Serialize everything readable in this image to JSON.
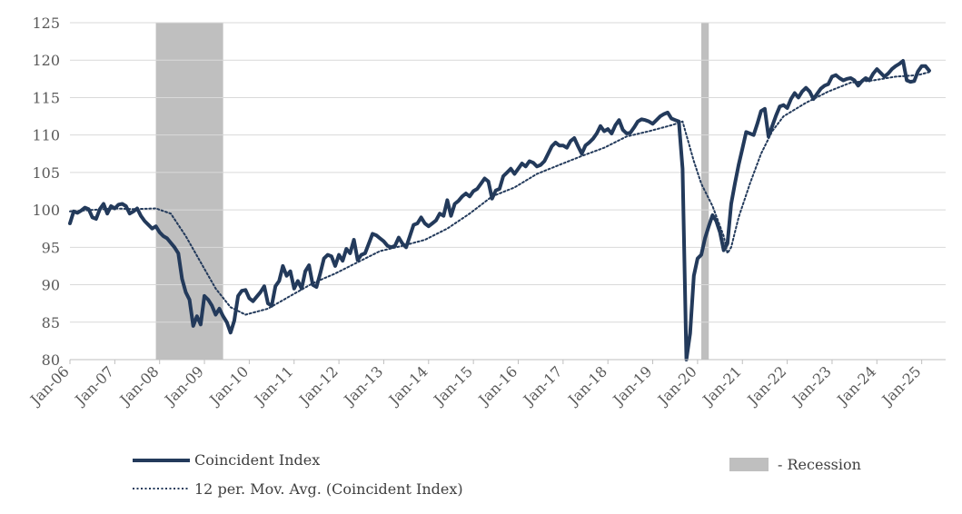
{
  "chart_data": {
    "type": "line",
    "title": "",
    "xlabel": "",
    "ylabel": "",
    "ylim": [
      80,
      125
    ],
    "y_ticks": [
      "80",
      "85",
      "90",
      "95",
      "100",
      "105",
      "110",
      "115",
      "120",
      "125"
    ],
    "x_ticks": [
      "Jan-06",
      "Jan-07",
      "Jan-08",
      "Jan-09",
      "Jan-10",
      "Jan-11",
      "Jan-12",
      "Jan-13",
      "Jan-14",
      "Jan-15",
      "Jan-16",
      "Jan-17",
      "Jan-18",
      "Jan-19",
      "Jan-20",
      "Jan-21",
      "Jan-22",
      "Jan-23",
      "Jan-24",
      "Jan-25"
    ],
    "x_range": [
      "2006-01",
      "2025-08"
    ],
    "grid": "horizontal",
    "legend_position": "bottom",
    "colors": {
      "index": "#233a5b",
      "moving_average": "#233a5b",
      "recession": "#bfbfbf",
      "grid": "#d9d9d9",
      "axis_text": "#595959"
    },
    "recessions": [
      {
        "start": "2007-12",
        "end": "2009-06"
      },
      {
        "start": "2020-02",
        "end": "2020-04"
      }
    ],
    "series": [
      {
        "name": "Coincident Index",
        "style": "solid",
        "points": [
          [
            "2006-01",
            98.2
          ],
          [
            "2006-02",
            99.8
          ],
          [
            "2006-03",
            99.6
          ],
          [
            "2006-04",
            99.9
          ],
          [
            "2006-05",
            100.3
          ],
          [
            "2006-06",
            100.1
          ],
          [
            "2006-07",
            99.0
          ],
          [
            "2006-08",
            98.8
          ],
          [
            "2006-09",
            100.1
          ],
          [
            "2006-10",
            100.8
          ],
          [
            "2006-11",
            99.5
          ],
          [
            "2006-12",
            100.5
          ],
          [
            "2007-01",
            100.2
          ],
          [
            "2007-02",
            100.7
          ],
          [
            "2007-03",
            100.8
          ],
          [
            "2007-04",
            100.5
          ],
          [
            "2007-05",
            99.5
          ],
          [
            "2007-06",
            99.8
          ],
          [
            "2007-07",
            100.2
          ],
          [
            "2007-08",
            99.2
          ],
          [
            "2007-09",
            98.5
          ],
          [
            "2007-10",
            98.0
          ],
          [
            "2007-11",
            97.5
          ],
          [
            "2007-12",
            97.8
          ],
          [
            "2008-01",
            97.0
          ],
          [
            "2008-02",
            96.5
          ],
          [
            "2008-03",
            96.2
          ],
          [
            "2008-04",
            95.6
          ],
          [
            "2008-05",
            95.0
          ],
          [
            "2008-06",
            94.2
          ],
          [
            "2008-07",
            90.8
          ],
          [
            "2008-08",
            89.0
          ],
          [
            "2008-09",
            88.0
          ],
          [
            "2008-10",
            84.5
          ],
          [
            "2008-11",
            85.8
          ],
          [
            "2008-12",
            84.7
          ],
          [
            "2009-01",
            88.5
          ],
          [
            "2009-02",
            88.0
          ],
          [
            "2009-03",
            87.2
          ],
          [
            "2009-04",
            86.0
          ],
          [
            "2009-05",
            86.8
          ],
          [
            "2009-06",
            85.8
          ],
          [
            "2009-07",
            85.0
          ],
          [
            "2009-08",
            83.6
          ],
          [
            "2009-09",
            85.2
          ],
          [
            "2009-10",
            88.5
          ],
          [
            "2009-11",
            89.2
          ],
          [
            "2009-12",
            89.3
          ],
          [
            "2010-01",
            88.2
          ],
          [
            "2010-02",
            87.8
          ],
          [
            "2010-03",
            88.4
          ],
          [
            "2010-04",
            89.0
          ],
          [
            "2010-05",
            89.8
          ],
          [
            "2010-06",
            87.5
          ],
          [
            "2010-07",
            87.2
          ],
          [
            "2010-08",
            89.8
          ],
          [
            "2010-09",
            90.5
          ],
          [
            "2010-10",
            92.5
          ],
          [
            "2010-11",
            91.2
          ],
          [
            "2010-12",
            91.8
          ],
          [
            "2011-01",
            89.5
          ],
          [
            "2011-02",
            90.5
          ],
          [
            "2011-03",
            89.5
          ],
          [
            "2011-04",
            91.8
          ],
          [
            "2011-05",
            92.6
          ],
          [
            "2011-06",
            90.0
          ],
          [
            "2011-07",
            89.7
          ],
          [
            "2011-08",
            91.5
          ],
          [
            "2011-09",
            93.5
          ],
          [
            "2011-10",
            94.0
          ],
          [
            "2011-11",
            93.8
          ],
          [
            "2011-12",
            92.5
          ],
          [
            "2012-01",
            94.0
          ],
          [
            "2012-02",
            93.2
          ],
          [
            "2012-03",
            94.8
          ],
          [
            "2012-04",
            94.2
          ],
          [
            "2012-05",
            96.0
          ],
          [
            "2012-06",
            93.3
          ],
          [
            "2012-07",
            94.0
          ],
          [
            "2012-08",
            94.2
          ],
          [
            "2012-09",
            95.5
          ],
          [
            "2012-10",
            96.8
          ],
          [
            "2012-11",
            96.6
          ],
          [
            "2012-12",
            96.2
          ],
          [
            "2013-01",
            95.8
          ],
          [
            "2013-02",
            95.2
          ],
          [
            "2013-03",
            95.0
          ],
          [
            "2013-04",
            95.2
          ],
          [
            "2013-05",
            96.3
          ],
          [
            "2013-06",
            95.5
          ],
          [
            "2013-07",
            95.0
          ],
          [
            "2013-08",
            96.5
          ],
          [
            "2013-09",
            98.0
          ],
          [
            "2013-10",
            98.2
          ],
          [
            "2013-11",
            99.0
          ],
          [
            "2013-12",
            98.2
          ],
          [
            "2014-01",
            97.8
          ],
          [
            "2014-02",
            98.2
          ],
          [
            "2014-03",
            98.6
          ],
          [
            "2014-04",
            99.5
          ],
          [
            "2014-05",
            99.2
          ],
          [
            "2014-06",
            101.3
          ],
          [
            "2014-07",
            99.2
          ],
          [
            "2014-08",
            100.8
          ],
          [
            "2014-09",
            101.2
          ],
          [
            "2014-10",
            101.8
          ],
          [
            "2014-11",
            102.2
          ],
          [
            "2014-12",
            101.8
          ],
          [
            "2015-01",
            102.5
          ],
          [
            "2015-02",
            102.8
          ],
          [
            "2015-03",
            103.5
          ],
          [
            "2015-04",
            104.2
          ],
          [
            "2015-05",
            103.8
          ],
          [
            "2015-06",
            101.5
          ],
          [
            "2015-07",
            102.6
          ],
          [
            "2015-08",
            102.8
          ],
          [
            "2015-09",
            104.5
          ],
          [
            "2015-10",
            105.0
          ],
          [
            "2015-11",
            105.5
          ],
          [
            "2015-12",
            104.8
          ],
          [
            "2016-01",
            105.5
          ],
          [
            "2016-02",
            106.2
          ],
          [
            "2016-03",
            105.8
          ],
          [
            "2016-04",
            106.5
          ],
          [
            "2016-05",
            106.3
          ],
          [
            "2016-06",
            105.8
          ],
          [
            "2016-07",
            106.0
          ],
          [
            "2016-08",
            106.5
          ],
          [
            "2016-09",
            107.5
          ],
          [
            "2016-10",
            108.5
          ],
          [
            "2016-11",
            109.0
          ],
          [
            "2016-12",
            108.6
          ],
          [
            "2017-01",
            108.6
          ],
          [
            "2017-02",
            108.3
          ],
          [
            "2017-03",
            109.2
          ],
          [
            "2017-04",
            109.6
          ],
          [
            "2017-05",
            108.5
          ],
          [
            "2017-06",
            107.5
          ],
          [
            "2017-07",
            108.6
          ],
          [
            "2017-08",
            109.0
          ],
          [
            "2017-09",
            109.5
          ],
          [
            "2017-10",
            110.2
          ],
          [
            "2017-11",
            111.2
          ],
          [
            "2017-12",
            110.5
          ],
          [
            "2018-01",
            110.8
          ],
          [
            "2018-02",
            110.2
          ],
          [
            "2018-03",
            111.3
          ],
          [
            "2018-04",
            112.0
          ],
          [
            "2018-05",
            110.7
          ],
          [
            "2018-06",
            110.2
          ],
          [
            "2018-07",
            110.3
          ],
          [
            "2018-08",
            111.0
          ],
          [
            "2018-09",
            111.8
          ],
          [
            "2018-10",
            112.1
          ],
          [
            "2018-11",
            112.0
          ],
          [
            "2018-12",
            111.8
          ],
          [
            "2019-01",
            111.5
          ],
          [
            "2019-02",
            112.0
          ],
          [
            "2019-03",
            112.5
          ],
          [
            "2019-04",
            112.8
          ],
          [
            "2019-05",
            113.0
          ],
          [
            "2019-06",
            112.2
          ],
          [
            "2019-07",
            112.0
          ],
          [
            "2019-08",
            111.8
          ],
          [
            "2019-09",
            105.5
          ],
          [
            "2019-10",
            80.0
          ],
          [
            "2019-11",
            83.5
          ],
          [
            "2019-12",
            91.2
          ],
          [
            "2020-01",
            93.5
          ],
          [
            "2020-02",
            94.0
          ],
          [
            "2020-03",
            96.2
          ],
          [
            "2020-04",
            97.8
          ],
          [
            "2020-05",
            99.3
          ],
          [
            "2020-06",
            98.5
          ],
          [
            "2020-07",
            97.0
          ],
          [
            "2020-08",
            94.6
          ],
          [
            "2020-09",
            95.5
          ],
          [
            "2020-10",
            100.8
          ],
          [
            "2020-11",
            103.5
          ],
          [
            "2020-12",
            106.0
          ],
          [
            "2021-01",
            108.2
          ],
          [
            "2021-02",
            110.4
          ],
          [
            "2021-03",
            110.2
          ],
          [
            "2021-04",
            110.0
          ],
          [
            "2021-05",
            111.5
          ],
          [
            "2021-06",
            113.2
          ],
          [
            "2021-07",
            113.5
          ],
          [
            "2021-08",
            109.8
          ],
          [
            "2021-09",
            111.2
          ],
          [
            "2021-10",
            112.6
          ],
          [
            "2021-11",
            113.8
          ],
          [
            "2021-12",
            114.0
          ],
          [
            "2022-01",
            113.6
          ],
          [
            "2022-02",
            114.8
          ],
          [
            "2022-03",
            115.6
          ],
          [
            "2022-04",
            115.0
          ],
          [
            "2022-05",
            115.8
          ],
          [
            "2022-06",
            116.3
          ],
          [
            "2022-07",
            115.8
          ],
          [
            "2022-08",
            114.8
          ],
          [
            "2022-09",
            115.5
          ],
          [
            "2022-10",
            116.2
          ],
          [
            "2022-11",
            116.6
          ],
          [
            "2022-12",
            116.8
          ],
          [
            "2023-01",
            117.8
          ],
          [
            "2023-02",
            118.0
          ],
          [
            "2023-03",
            117.6
          ],
          [
            "2023-04",
            117.3
          ],
          [
            "2023-05",
            117.5
          ],
          [
            "2023-06",
            117.6
          ],
          [
            "2023-07",
            117.3
          ],
          [
            "2023-08",
            116.6
          ],
          [
            "2023-09",
            117.2
          ],
          [
            "2023-10",
            117.6
          ],
          [
            "2023-11",
            117.3
          ],
          [
            "2023-12",
            118.2
          ],
          [
            "2024-01",
            118.8
          ],
          [
            "2024-02",
            118.3
          ],
          [
            "2024-03",
            117.8
          ],
          [
            "2024-04",
            118.2
          ],
          [
            "2024-05",
            118.8
          ],
          [
            "2024-06",
            119.2
          ],
          [
            "2024-07",
            119.5
          ],
          [
            "2024-08",
            119.9
          ],
          [
            "2024-09",
            117.3
          ],
          [
            "2024-10",
            117.1
          ],
          [
            "2024-11",
            117.2
          ],
          [
            "2024-12",
            118.5
          ],
          [
            "2025-01",
            119.2
          ],
          [
            "2025-02",
            119.2
          ],
          [
            "2025-03",
            118.6
          ]
        ]
      },
      {
        "name": "12 per. Mov. Avg. (Coincident Index)",
        "style": "dotted",
        "points": [
          [
            "2006-01",
            99.8
          ],
          [
            "2007-01",
            100.2
          ],
          [
            "2007-06",
            100.1
          ],
          [
            "2007-12",
            100.2
          ],
          [
            "2008-04",
            99.5
          ],
          [
            "2008-08",
            96.5
          ],
          [
            "2008-12",
            93.0
          ],
          [
            "2009-04",
            89.5
          ],
          [
            "2009-08",
            87.0
          ],
          [
            "2009-12",
            86.0
          ],
          [
            "2010-06",
            86.8
          ],
          [
            "2010-12",
            88.5
          ],
          [
            "2011-06",
            90.2
          ],
          [
            "2011-12",
            91.5
          ],
          [
            "2012-06",
            93.0
          ],
          [
            "2012-12",
            94.5
          ],
          [
            "2013-06",
            95.2
          ],
          [
            "2013-12",
            96.0
          ],
          [
            "2014-06",
            97.5
          ],
          [
            "2014-12",
            99.5
          ],
          [
            "2015-06",
            101.8
          ],
          [
            "2015-12",
            103.0
          ],
          [
            "2016-06",
            104.8
          ],
          [
            "2016-12",
            106.0
          ],
          [
            "2017-06",
            107.2
          ],
          [
            "2017-12",
            108.3
          ],
          [
            "2018-06",
            109.8
          ],
          [
            "2018-12",
            110.5
          ],
          [
            "2019-06",
            111.3
          ],
          [
            "2019-09",
            111.8
          ],
          [
            "2019-12",
            106.5
          ],
          [
            "2020-02",
            103.5
          ],
          [
            "2020-05",
            100.5
          ],
          [
            "2020-08",
            96.5
          ],
          [
            "2020-09",
            94.2
          ],
          [
            "2020-10",
            95.0
          ],
          [
            "2020-12",
            99.0
          ],
          [
            "2021-03",
            103.5
          ],
          [
            "2021-06",
            107.5
          ],
          [
            "2021-09",
            110.5
          ],
          [
            "2021-12",
            112.5
          ],
          [
            "2022-06",
            114.3
          ],
          [
            "2022-12",
            115.8
          ],
          [
            "2023-06",
            117.0
          ],
          [
            "2023-12",
            117.3
          ],
          [
            "2024-06",
            117.8
          ],
          [
            "2024-12",
            118.0
          ],
          [
            "2025-03",
            118.4
          ]
        ]
      }
    ],
    "legend": {
      "index_label": "Coincident Index",
      "ma_label": "12 per. Mov. Avg. (Coincident Index)",
      "recession_label": "- Recession"
    }
  }
}
